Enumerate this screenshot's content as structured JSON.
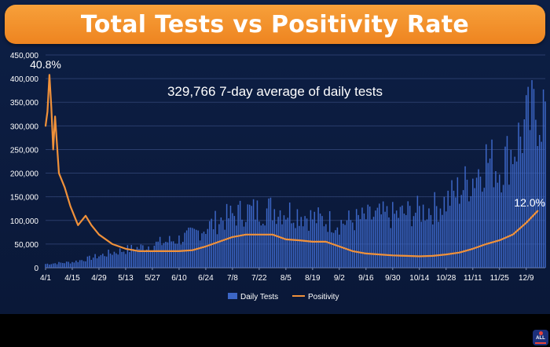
{
  "title": "Total Tests vs Positivity Rate",
  "colors": {
    "bars": "#3c66c6",
    "line": "#f0913a",
    "title_bg": "#f39330",
    "background": "#0c1c40"
  },
  "logo_text": "ALL",
  "chart_data": {
    "type": "bar",
    "title": "Total Tests vs Positivity Rate",
    "annotation": "329,766 7-day average of daily tests",
    "y_axis": {
      "min": 0,
      "max": 450000,
      "step": 50000,
      "ticks": [
        "0",
        "50,000",
        "100,000",
        "150,000",
        "200,000",
        "250,000",
        "300,000",
        "350,000",
        "400,000",
        "450,000"
      ]
    },
    "positivity_axis_max_percent": 45,
    "x_ticks": [
      "4/1",
      "4/15",
      "4/29",
      "5/13",
      "5/27",
      "6/10",
      "6/24",
      "7/8",
      "7/22",
      "8/5",
      "8/19",
      "9/2",
      "9/16",
      "9/30",
      "10/14",
      "10/28",
      "11/11",
      "11/25",
      "12/9"
    ],
    "legend": {
      "bars": "Daily Tests",
      "line": "Positivity",
      "position": "bottom-right"
    },
    "labels": {
      "start_positivity": "40.8%",
      "end_positivity": "12.0%"
    },
    "series": [
      {
        "name": "Daily Tests",
        "type": "bar",
        "weekly_points": [
          [
            "4/1",
            8000
          ],
          [
            "4/8",
            10000
          ],
          [
            "4/15",
            12000
          ],
          [
            "4/22",
            18000
          ],
          [
            "4/29",
            25000
          ],
          [
            "5/6",
            32000
          ],
          [
            "5/13",
            38000
          ],
          [
            "5/20",
            42000
          ],
          [
            "5/27",
            48000
          ],
          [
            "6/3",
            55000
          ],
          [
            "6/10",
            60000
          ],
          [
            "6/17",
            70000
          ],
          [
            "6/24",
            85000
          ],
          [
            "7/1",
            100000
          ],
          [
            "7/8",
            110000
          ],
          [
            "7/15",
            120000
          ],
          [
            "7/22",
            120000
          ],
          [
            "7/29",
            125000
          ],
          [
            "8/5",
            120000
          ],
          [
            "8/12",
            115000
          ],
          [
            "8/19",
            105000
          ],
          [
            "8/26",
            100000
          ],
          [
            "9/2",
            95000
          ],
          [
            "9/9",
            100000
          ],
          [
            "9/16",
            105000
          ],
          [
            "9/23",
            110000
          ],
          [
            "9/30",
            110000
          ],
          [
            "10/7",
            115000
          ],
          [
            "10/14",
            120000
          ],
          [
            "10/21",
            125000
          ],
          [
            "10/28",
            140000
          ],
          [
            "11/4",
            165000
          ],
          [
            "11/11",
            190000
          ],
          [
            "11/18",
            230000
          ],
          [
            "11/25",
            210000
          ],
          [
            "12/2",
            250000
          ],
          [
            "12/9",
            300000
          ],
          [
            "12/15",
            335000
          ]
        ]
      },
      {
        "name": "Positivity",
        "type": "line",
        "unit": "percent",
        "points": [
          [
            "4/1",
            30
          ],
          [
            "4/2",
            33
          ],
          [
            "4/3",
            40.8
          ],
          [
            "4/4",
            34
          ],
          [
            "4/5",
            25
          ],
          [
            "4/6",
            32
          ],
          [
            "4/8",
            20
          ],
          [
            "4/11",
            17
          ],
          [
            "4/14",
            13
          ],
          [
            "4/18",
            9
          ],
          [
            "4/22",
            11
          ],
          [
            "4/25",
            9
          ],
          [
            "4/29",
            7
          ],
          [
            "5/6",
            5
          ],
          [
            "5/13",
            4
          ],
          [
            "5/20",
            3.5
          ],
          [
            "5/27",
            3.5
          ],
          [
            "6/3",
            3.5
          ],
          [
            "6/10",
            3.5
          ],
          [
            "6/17",
            3.7
          ],
          [
            "6/24",
            4.5
          ],
          [
            "7/1",
            5.5
          ],
          [
            "7/8",
            6.5
          ],
          [
            "7/15",
            7
          ],
          [
            "7/22",
            7
          ],
          [
            "7/29",
            7
          ],
          [
            "8/5",
            6
          ],
          [
            "8/12",
            5.8
          ],
          [
            "8/19",
            5.5
          ],
          [
            "8/26",
            5.5
          ],
          [
            "9/2",
            4.5
          ],
          [
            "9/9",
            3.5
          ],
          [
            "9/16",
            3
          ],
          [
            "9/23",
            2.8
          ],
          [
            "9/30",
            2.6
          ],
          [
            "10/7",
            2.5
          ],
          [
            "10/14",
            2.4
          ],
          [
            "10/21",
            2.5
          ],
          [
            "10/28",
            2.8
          ],
          [
            "11/4",
            3.2
          ],
          [
            "11/11",
            4
          ],
          [
            "11/18",
            5
          ],
          [
            "11/25",
            5.8
          ],
          [
            "12/2",
            7
          ],
          [
            "12/9",
            9.5
          ],
          [
            "12/15",
            12
          ]
        ]
      }
    ]
  }
}
